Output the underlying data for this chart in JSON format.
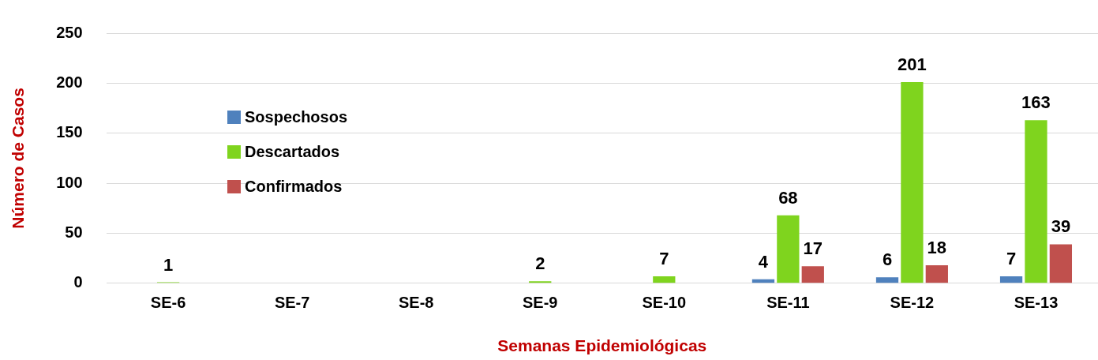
{
  "chart_data": {
    "type": "bar",
    "xlabel": "Semanas Epidemiológicas",
    "ylabel": "Número de Casos",
    "categories": [
      "SE-6",
      "SE-7",
      "SE-8",
      "SE-9",
      "SE-10",
      "SE-11",
      "SE-12",
      "SE-13"
    ],
    "series": [
      {
        "name": "Sospechosos",
        "color": "#4f81bd",
        "values": [
          null,
          null,
          null,
          null,
          null,
          4,
          6,
          7
        ]
      },
      {
        "name": "Descartados",
        "color": "#7fd41e",
        "values": [
          1,
          null,
          null,
          2,
          7,
          68,
          201,
          163
        ]
      },
      {
        "name": "Confirmados",
        "color": "#c0504d",
        "values": [
          null,
          null,
          null,
          null,
          null,
          17,
          18,
          39
        ]
      }
    ],
    "ylim": [
      0,
      250
    ],
    "yticks": [
      0,
      50,
      100,
      150,
      200,
      250
    ],
    "grid": "y",
    "legend": "top left",
    "data_labels": true
  }
}
